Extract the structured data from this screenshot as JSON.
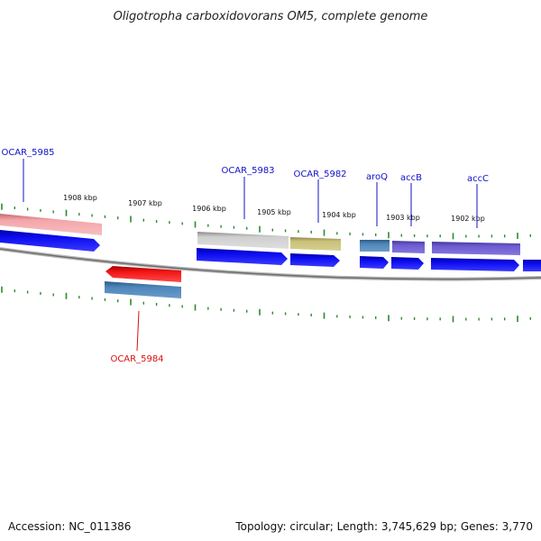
{
  "title": "Oligotropha carboxidovorans OM5, complete genome",
  "footer": {
    "accession": "Accession: NC_011386",
    "summary": "Topology: circular; Length: 3,745,629 bp; Genes: 3,770"
  },
  "kbp_labels": [
    "1908 kbp",
    "1907 kbp",
    "1906 kbp",
    "1905 kbp",
    "1904 kbp",
    "1903 kbp",
    "1902 kbp"
  ],
  "gene_labels": [
    {
      "id": "ocar-5985",
      "text": "OCAR_5985",
      "color": "#1010c8"
    },
    {
      "id": "ocar-5983",
      "text": "OCAR_5983",
      "color": "#1010c8"
    },
    {
      "id": "ocar-5982",
      "text": "OCAR_5982",
      "color": "#1010c8"
    },
    {
      "id": "aroq",
      "text": "aroQ",
      "color": "#1010c8"
    },
    {
      "id": "accb",
      "text": "accB",
      "color": "#1010c8"
    },
    {
      "id": "accc",
      "text": "accC",
      "color": "#1010c8"
    },
    {
      "id": "ocar-5984",
      "text": "OCAR_5984",
      "color": "#d81010"
    }
  ],
  "colors": {
    "backbone": "#8a8a8a",
    "tick": "#2a8a2a",
    "cds_forward": "#0a0ae8",
    "cds_reverse": "#ee1010",
    "pink": "#f0a0a4",
    "gray": "#c8c8c8",
    "olive": "#c8c076",
    "steelblue": "#4c82b4",
    "slateblue": "#6a5acd"
  }
}
